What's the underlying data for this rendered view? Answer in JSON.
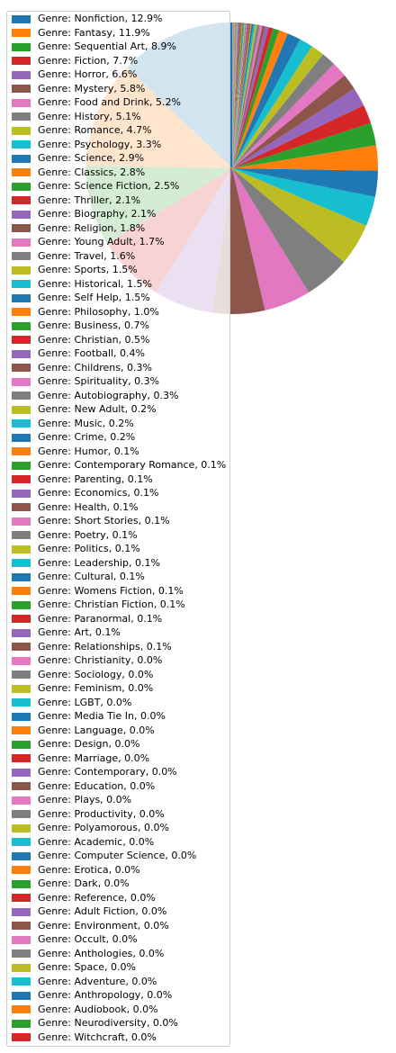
{
  "chart_data": {
    "type": "pie",
    "title": "",
    "colors": [
      "#1f77b4",
      "#ff7f0e",
      "#2ca02c",
      "#d62728",
      "#9467bd",
      "#8c564b",
      "#e377c2",
      "#7f7f7f",
      "#bcbd22",
      "#17becf"
    ],
    "legend_placement": "upper-left",
    "slices": [
      {
        "label": "Genre: Nonfiction, 12.9%",
        "value": 12.9
      },
      {
        "label": "Genre: Fantasy, 11.9%",
        "value": 11.9
      },
      {
        "label": "Genre: Sequential Art, 8.9%",
        "value": 8.9
      },
      {
        "label": "Genre: Fiction, 7.7%",
        "value": 7.7
      },
      {
        "label": "Genre: Horror, 6.6%",
        "value": 6.6
      },
      {
        "label": "Genre: Mystery, 5.8%",
        "value": 5.8
      },
      {
        "label": "Genre: Food and Drink, 5.2%",
        "value": 5.2
      },
      {
        "label": "Genre: History, 5.1%",
        "value": 5.1
      },
      {
        "label": "Genre: Romance, 4.7%",
        "value": 4.7
      },
      {
        "label": "Genre: Psychology, 3.3%",
        "value": 3.3
      },
      {
        "label": "Genre: Science, 2.9%",
        "value": 2.9
      },
      {
        "label": "Genre: Classics, 2.8%",
        "value": 2.8
      },
      {
        "label": "Genre: Science Fiction, 2.5%",
        "value": 2.5
      },
      {
        "label": "Genre: Thriller, 2.1%",
        "value": 2.1
      },
      {
        "label": "Genre: Biography, 2.1%",
        "value": 2.1
      },
      {
        "label": "Genre: Religion, 1.8%",
        "value": 1.8
      },
      {
        "label": "Genre: Young Adult, 1.7%",
        "value": 1.7
      },
      {
        "label": "Genre: Travel, 1.6%",
        "value": 1.6
      },
      {
        "label": "Genre: Sports, 1.5%",
        "value": 1.5
      },
      {
        "label": "Genre: Historical, 1.5%",
        "value": 1.5
      },
      {
        "label": "Genre: Self Help, 1.5%",
        "value": 1.5
      },
      {
        "label": "Genre: Philosophy, 1.0%",
        "value": 1.0
      },
      {
        "label": "Genre: Business, 0.7%",
        "value": 0.7
      },
      {
        "label": "Genre: Christian, 0.5%",
        "value": 0.5
      },
      {
        "label": "Genre: Football, 0.4%",
        "value": 0.4
      },
      {
        "label": "Genre: Childrens, 0.3%",
        "value": 0.3
      },
      {
        "label": "Genre: Spirituality, 0.3%",
        "value": 0.3
      },
      {
        "label": "Genre: Autobiography, 0.3%",
        "value": 0.3
      },
      {
        "label": "Genre: New Adult, 0.2%",
        "value": 0.2
      },
      {
        "label": "Genre: Music, 0.2%",
        "value": 0.2
      },
      {
        "label": "Genre: Crime, 0.2%",
        "value": 0.2
      },
      {
        "label": "Genre: Humor, 0.1%",
        "value": 0.1
      },
      {
        "label": "Genre: Contemporary Romance, 0.1%",
        "value": 0.1
      },
      {
        "label": "Genre: Parenting, 0.1%",
        "value": 0.1
      },
      {
        "label": "Genre: Economics, 0.1%",
        "value": 0.1
      },
      {
        "label": "Genre: Health, 0.1%",
        "value": 0.1
      },
      {
        "label": "Genre: Short Stories, 0.1%",
        "value": 0.1
      },
      {
        "label": "Genre: Poetry, 0.1%",
        "value": 0.1
      },
      {
        "label": "Genre: Politics, 0.1%",
        "value": 0.1
      },
      {
        "label": "Genre: Leadership, 0.1%",
        "value": 0.1
      },
      {
        "label": "Genre: Cultural, 0.1%",
        "value": 0.1
      },
      {
        "label": "Genre: Womens Fiction, 0.1%",
        "value": 0.1
      },
      {
        "label": "Genre: Christian Fiction, 0.1%",
        "value": 0.1
      },
      {
        "label": "Genre: Paranormal, 0.1%",
        "value": 0.1
      },
      {
        "label": "Genre: Art, 0.1%",
        "value": 0.1
      },
      {
        "label": "Genre: Relationships, 0.1%",
        "value": 0.1
      },
      {
        "label": "Genre: Christianity, 0.0%",
        "value": 0.04
      },
      {
        "label": "Genre: Sociology, 0.0%",
        "value": 0.04
      },
      {
        "label": "Genre: Feminism, 0.0%",
        "value": 0.04
      },
      {
        "label": "Genre: LGBT, 0.0%",
        "value": 0.04
      },
      {
        "label": "Genre: Media Tie In, 0.0%",
        "value": 0.04
      },
      {
        "label": "Genre: Language, 0.0%",
        "value": 0.03
      },
      {
        "label": "Genre: Design, 0.0%",
        "value": 0.03
      },
      {
        "label": "Genre: Marriage, 0.0%",
        "value": 0.03
      },
      {
        "label": "Genre: Contemporary, 0.0%",
        "value": 0.03
      },
      {
        "label": "Genre: Education, 0.0%",
        "value": 0.03
      },
      {
        "label": "Genre: Plays, 0.0%",
        "value": 0.03
      },
      {
        "label": "Genre: Productivity, 0.0%",
        "value": 0.03
      },
      {
        "label": "Genre: Polyamorous, 0.0%",
        "value": 0.02
      },
      {
        "label": "Genre: Academic, 0.0%",
        "value": 0.02
      },
      {
        "label": "Genre: Computer Science, 0.0%",
        "value": 0.02
      },
      {
        "label": "Genre: Erotica, 0.0%",
        "value": 0.02
      },
      {
        "label": "Genre: Dark, 0.0%",
        "value": 0.02
      },
      {
        "label": "Genre: Reference, 0.0%",
        "value": 0.02
      },
      {
        "label": "Genre: Adult Fiction, 0.0%",
        "value": 0.02
      },
      {
        "label": "Genre: Environment, 0.0%",
        "value": 0.01
      },
      {
        "label": "Genre: Occult, 0.0%",
        "value": 0.01
      },
      {
        "label": "Genre: Anthologies, 0.0%",
        "value": 0.01
      },
      {
        "label": "Genre: Space, 0.0%",
        "value": 0.01
      },
      {
        "label": "Genre: Adventure, 0.0%",
        "value": 0.01
      },
      {
        "label": "Genre: Anthropology, 0.0%",
        "value": 0.01
      },
      {
        "label": "Genre: Audiobook, 0.0%",
        "value": 0.01
      },
      {
        "label": "Genre: Neurodiversity, 0.0%",
        "value": 0.01
      },
      {
        "label": "Genre: Witchcraft, 0.0%",
        "value": 0.01
      }
    ]
  }
}
